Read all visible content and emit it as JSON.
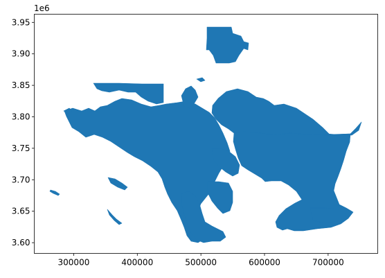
{
  "chart_data": {
    "type": "map",
    "plot_kind": "geopandas-polygons",
    "fill_color": "#1f77b4",
    "axes_color": "#000000",
    "grid": false,
    "legend": "none",
    "x_axis": {
      "ticks": [
        300000,
        400000,
        500000,
        600000,
        700000
      ],
      "tick_labels": [
        "300000",
        "400000",
        "500000",
        "600000",
        "700000"
      ],
      "range": [
        238000,
        778000
      ]
    },
    "y_axis": {
      "ticks": [
        3.6,
        3.65,
        3.7,
        3.75,
        3.8,
        3.85,
        3.9,
        3.95
      ],
      "tick_labels": [
        "3.60",
        "3.65",
        "3.70",
        "3.75",
        "3.80",
        "3.85",
        "3.90",
        "3.95"
      ],
      "range": [
        3.583,
        3.963
      ],
      "offset_label": "1e6"
    }
  }
}
